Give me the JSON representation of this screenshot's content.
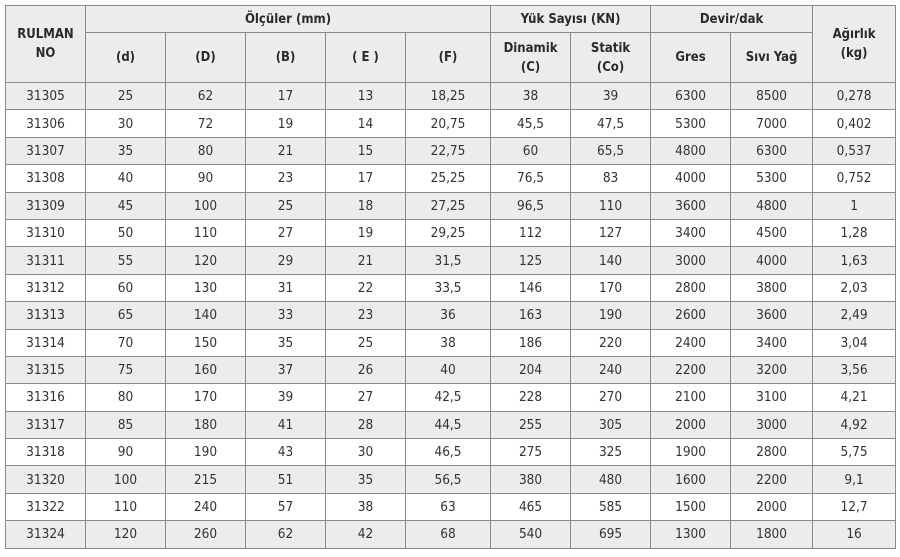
{
  "header": {
    "rulman": "RULMAN",
    "no": "NO",
    "olculer": "Ölçüler (mm)",
    "yuk": "Yük Sayısı (KN)",
    "devir": "Devir/dak",
    "agirlik": "Ağırlık",
    "agirlik_unit": "(kg)",
    "cols": [
      "(d)",
      "(D)",
      "(B)",
      "( E )",
      "(F)"
    ],
    "dinamik": "Dinamik",
    "dinamik_sym": "(C)",
    "statik": "Statik",
    "statik_sym": "(Co)",
    "gres": "Gres",
    "sivi": "Sıvı Yağ"
  },
  "rows": [
    [
      "31305",
      "25",
      "62",
      "17",
      "13",
      "18,25",
      "38",
      "39",
      "6300",
      "8500",
      "0,278"
    ],
    [
      "31306",
      "30",
      "72",
      "19",
      "14",
      "20,75",
      "45,5",
      "47,5",
      "5300",
      "7000",
      "0,402"
    ],
    [
      "31307",
      "35",
      "80",
      "21",
      "15",
      "22,75",
      "60",
      "65,5",
      "4800",
      "6300",
      "0,537"
    ],
    [
      "31308",
      "40",
      "90",
      "23",
      "17",
      "25,25",
      "76,5",
      "83",
      "4000",
      "5300",
      "0,752"
    ],
    [
      "31309",
      "45",
      "100",
      "25",
      "18",
      "27,25",
      "96,5",
      "110",
      "3600",
      "4800",
      "1"
    ],
    [
      "31310",
      "50",
      "110",
      "27",
      "19",
      "29,25",
      "112",
      "127",
      "3400",
      "4500",
      "1,28"
    ],
    [
      "31311",
      "55",
      "120",
      "29",
      "21",
      "31,5",
      "125",
      "140",
      "3000",
      "4000",
      "1,63"
    ],
    [
      "31312",
      "60",
      "130",
      "31",
      "22",
      "33,5",
      "146",
      "170",
      "2800",
      "3800",
      "2,03"
    ],
    [
      "31313",
      "65",
      "140",
      "33",
      "23",
      "36",
      "163",
      "190",
      "2600",
      "3600",
      "2,49"
    ],
    [
      "31314",
      "70",
      "150",
      "35",
      "25",
      "38",
      "186",
      "220",
      "2400",
      "3400",
      "3,04"
    ],
    [
      "31315",
      "75",
      "160",
      "37",
      "26",
      "40",
      "204",
      "240",
      "2200",
      "3200",
      "3,56"
    ],
    [
      "31316",
      "80",
      "170",
      "39",
      "27",
      "42,5",
      "228",
      "270",
      "2100",
      "3100",
      "4,21"
    ],
    [
      "31317",
      "85",
      "180",
      "41",
      "28",
      "44,5",
      "255",
      "305",
      "2000",
      "3000",
      "4,92"
    ],
    [
      "31318",
      "90",
      "190",
      "43",
      "30",
      "46,5",
      "275",
      "325",
      "1900",
      "2800",
      "5,75"
    ],
    [
      "31320",
      "100",
      "215",
      "51",
      "35",
      "56,5",
      "380",
      "480",
      "1600",
      "2200",
      "9,1"
    ],
    [
      "31322",
      "110",
      "240",
      "57",
      "38",
      "63",
      "465",
      "585",
      "1500",
      "2000",
      "12,7"
    ],
    [
      "31324",
      "120",
      "260",
      "62",
      "42",
      "68",
      "540",
      "695",
      "1300",
      "1800",
      "16"
    ]
  ]
}
